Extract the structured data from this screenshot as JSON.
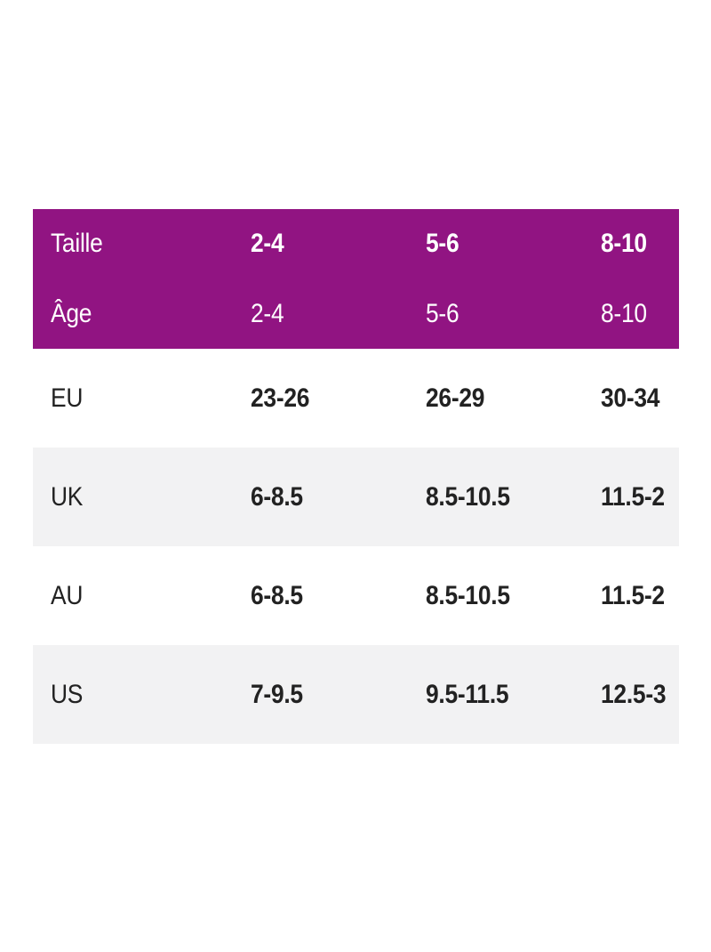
{
  "table": {
    "title": "size-conversion-chart",
    "header_rows": [
      {
        "label": "Taille",
        "values": [
          "2-4",
          "5-6",
          "8-10"
        ]
      },
      {
        "label": "Âge",
        "values": [
          "2-4",
          "5-6",
          "8-10"
        ]
      }
    ],
    "rows": [
      {
        "label": "EU",
        "values": [
          "23-26",
          "26-29",
          "30-34"
        ]
      },
      {
        "label": "UK",
        "values": [
          "6-8.5",
          "8.5-10.5",
          "11.5-2"
        ]
      },
      {
        "label": "AU",
        "values": [
          "6-8.5",
          "8.5-10.5",
          "11.5-2"
        ]
      },
      {
        "label": "US",
        "values": [
          "7-9.5",
          "9.5-11.5",
          "12.5-3"
        ]
      }
    ],
    "colors": {
      "header_bg": "#911482",
      "header_text": "#FFFFFF",
      "row_bg": "#FFFFFF",
      "row_alt_bg": "#F2F2F3",
      "text": "#222222"
    }
  }
}
